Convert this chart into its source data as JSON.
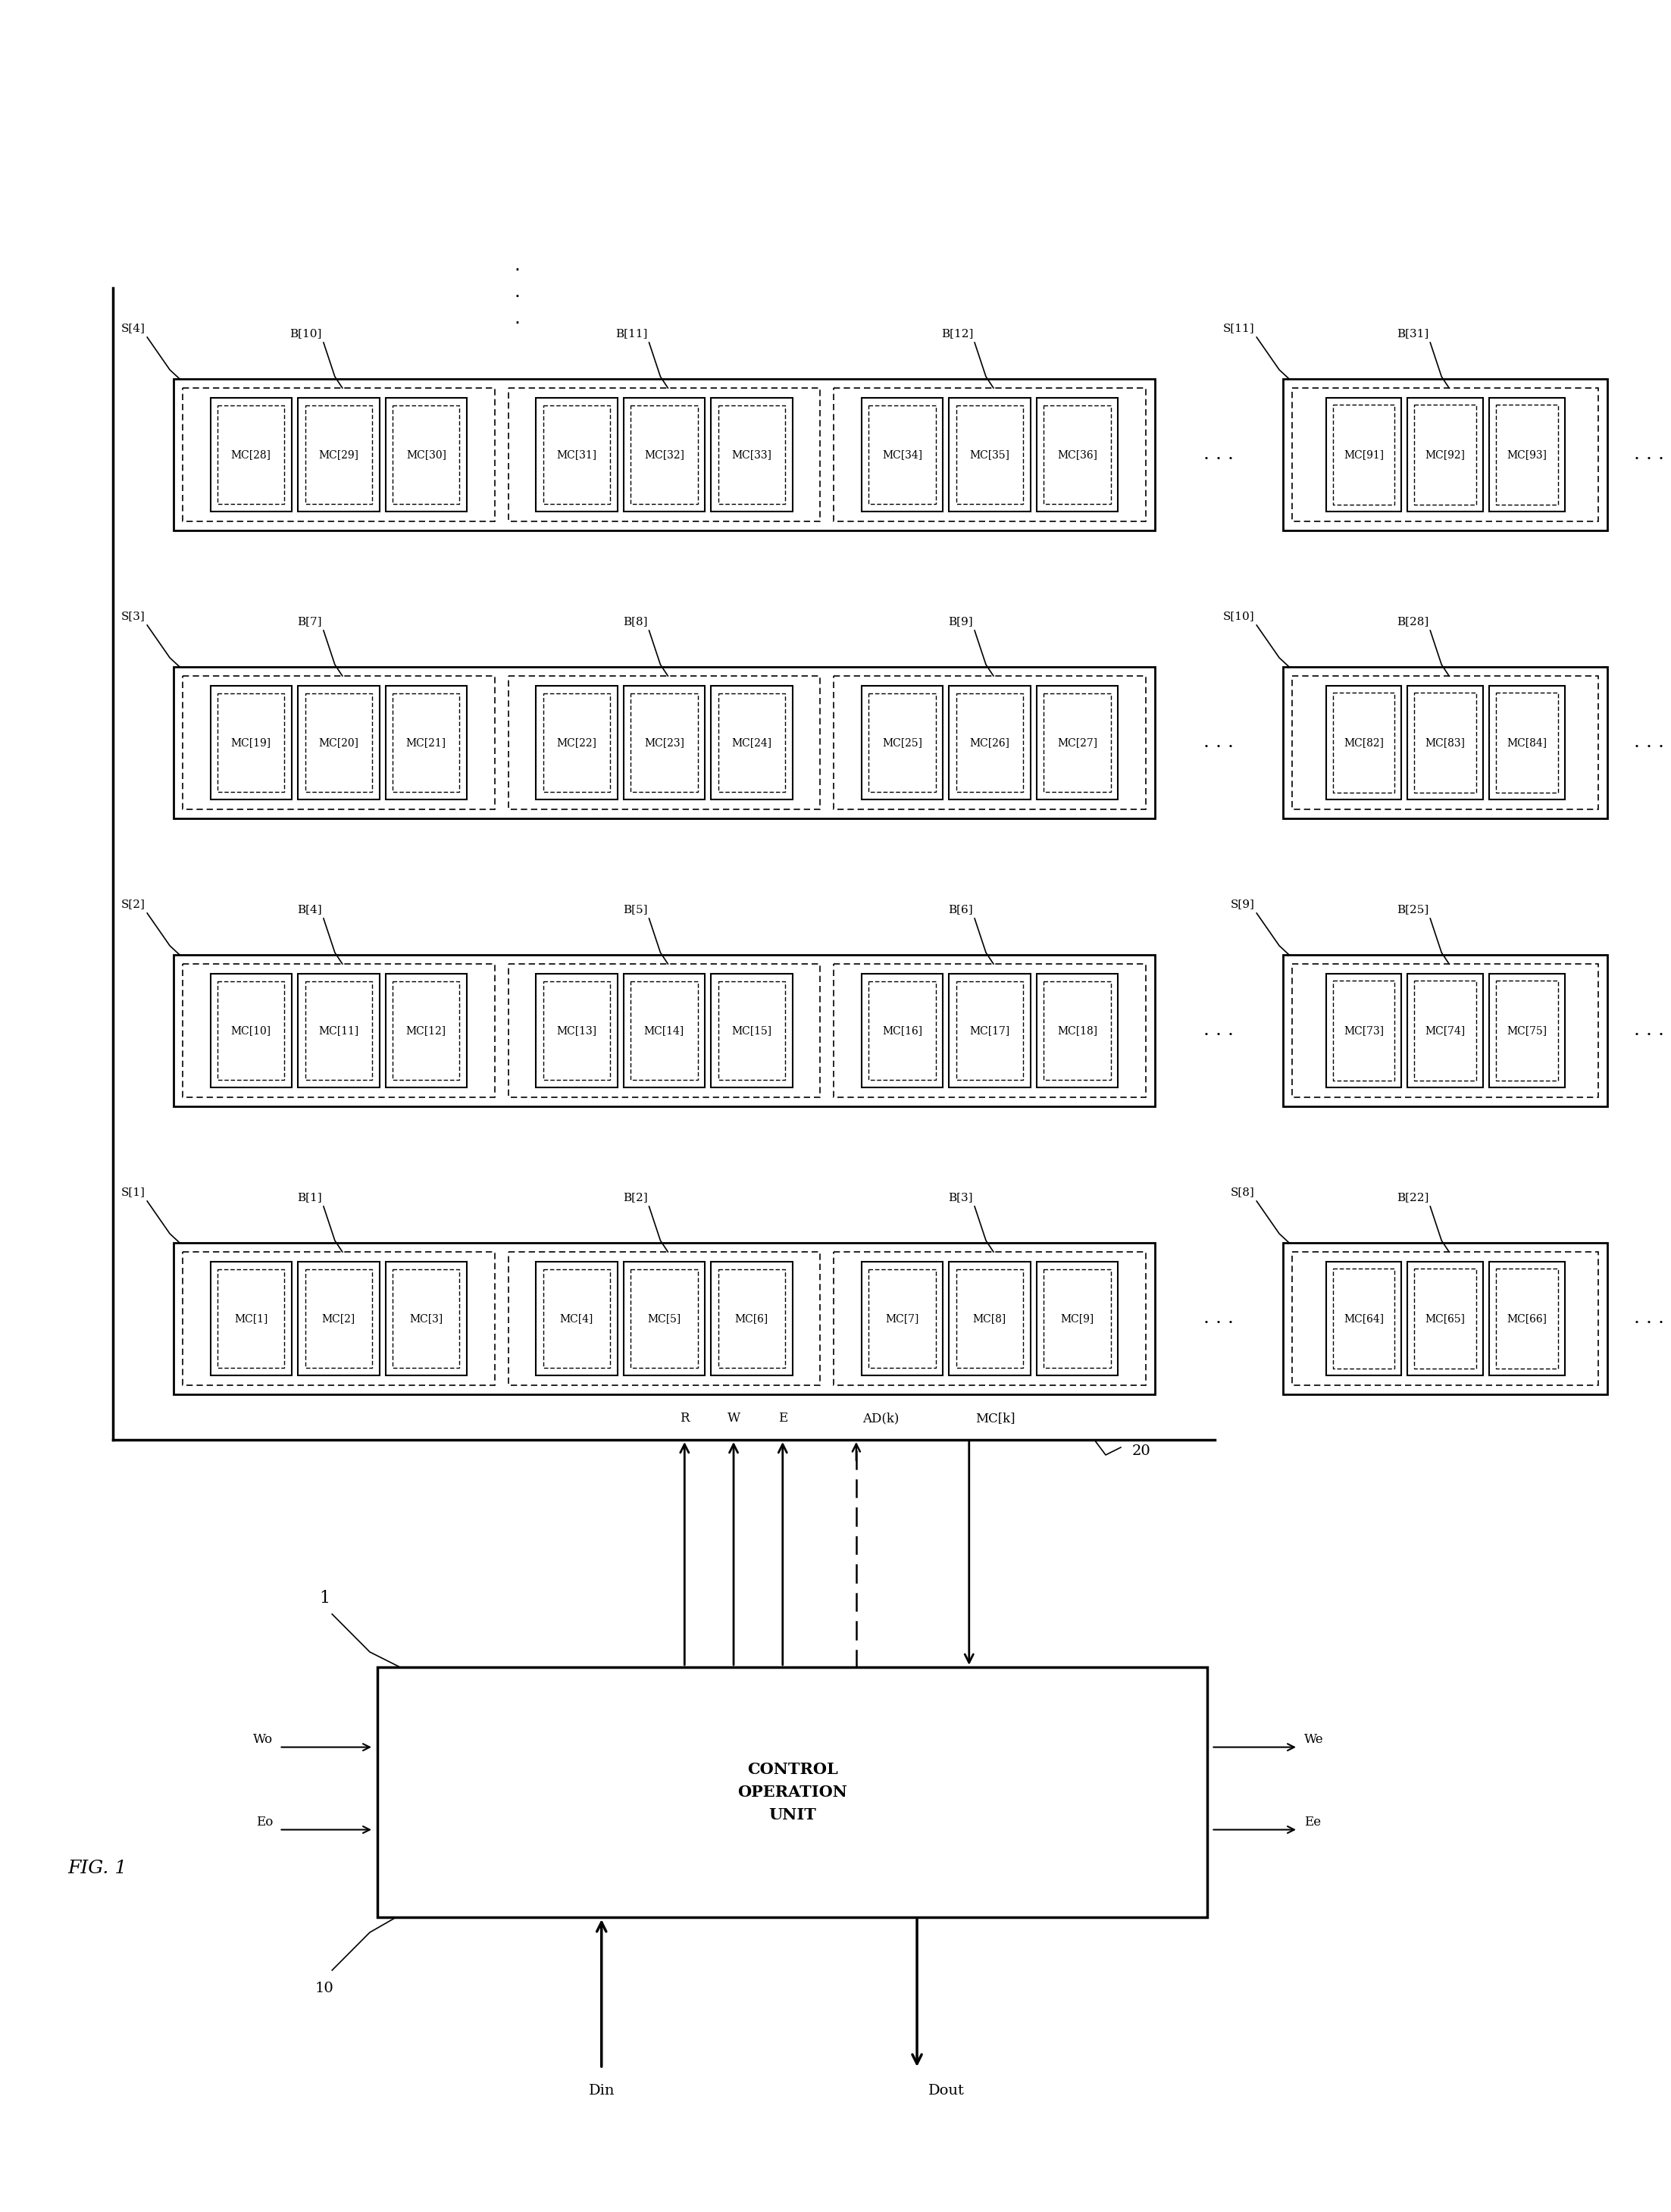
{
  "fig_label": "FIG. 1",
  "bg_color": "#ffffff",
  "left_rows": [
    {
      "s_label": "S[1]",
      "blocks": [
        {
          "b_label": "B[1]",
          "mc_labels": [
            "MC[1]",
            "MC[2]",
            "MC[3]"
          ]
        },
        {
          "b_label": "B[2]",
          "mc_labels": [
            "MC[4]",
            "MC[5]",
            "MC[6]"
          ]
        },
        {
          "b_label": "B[3]",
          "mc_labels": [
            "MC[7]",
            "MC[8]",
            "MC[9]"
          ]
        }
      ]
    },
    {
      "s_label": "S[2]",
      "blocks": [
        {
          "b_label": "B[4]",
          "mc_labels": [
            "MC[10]",
            "MC[11]",
            "MC[12]"
          ]
        },
        {
          "b_label": "B[5]",
          "mc_labels": [
            "MC[13]",
            "MC[14]",
            "MC[15]"
          ]
        },
        {
          "b_label": "B[6]",
          "mc_labels": [
            "MC[16]",
            "MC[17]",
            "MC[18]"
          ]
        }
      ]
    },
    {
      "s_label": "S[3]",
      "blocks": [
        {
          "b_label": "B[7]",
          "mc_labels": [
            "MC[19]",
            "MC[20]",
            "MC[21]"
          ]
        },
        {
          "b_label": "B[8]",
          "mc_labels": [
            "MC[22]",
            "MC[23]",
            "MC[24]"
          ]
        },
        {
          "b_label": "B[9]",
          "mc_labels": [
            "MC[25]",
            "MC[26]",
            "MC[27]"
          ]
        }
      ]
    },
    {
      "s_label": "S[4]",
      "blocks": [
        {
          "b_label": "B[10]",
          "mc_labels": [
            "MC[28]",
            "MC[29]",
            "MC[30]"
          ]
        },
        {
          "b_label": "B[11]",
          "mc_labels": [
            "MC[31]",
            "MC[32]",
            "MC[33]"
          ]
        },
        {
          "b_label": "B[12]",
          "mc_labels": [
            "MC[34]",
            "MC[35]",
            "MC[36]"
          ]
        }
      ]
    }
  ],
  "right_rows": [
    {
      "s_label": "S[8]",
      "blocks": [
        {
          "b_label": "B[22]",
          "mc_labels": [
            "MC[64]",
            "MC[65]",
            "MC[66]"
          ]
        }
      ]
    },
    {
      "s_label": "S[9]",
      "blocks": [
        {
          "b_label": "B[25]",
          "mc_labels": [
            "MC[73]",
            "MC[74]",
            "MC[75]"
          ]
        }
      ]
    },
    {
      "s_label": "S[10]",
      "blocks": [
        {
          "b_label": "B[28]",
          "mc_labels": [
            "MC[82]",
            "MC[83]",
            "MC[84]"
          ]
        }
      ]
    },
    {
      "s_label": "S[11]",
      "blocks": [
        {
          "b_label": "B[31]",
          "mc_labels": [
            "MC[91]",
            "MC[92]",
            "MC[93]"
          ]
        }
      ]
    }
  ],
  "signals_up": [
    "R",
    "W",
    "E"
  ],
  "signal_adk": "AD(k)",
  "signal_mck": "MC[k]",
  "signal_eo": "Eo",
  "signal_wo": "Wo",
  "signal_ee": "Ee",
  "signal_we": "We",
  "signal_din": "Din",
  "signal_dout": "Dout",
  "ctrl_label": "CONTROL\nOPERATION\nUNIT",
  "label_1": "1",
  "label_10": "10",
  "label_20": "20"
}
